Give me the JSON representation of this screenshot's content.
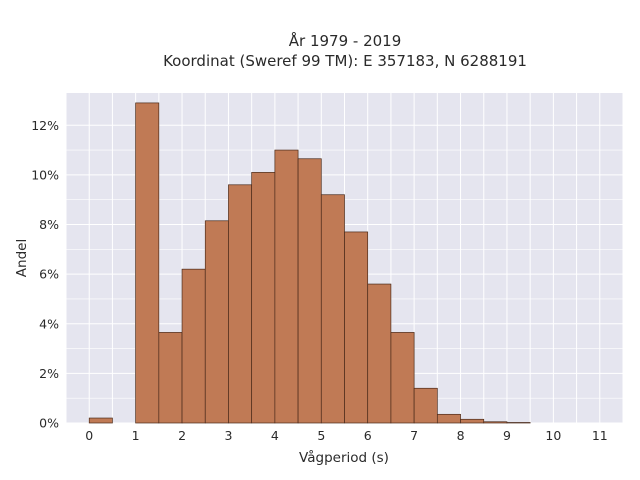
{
  "chart_data": {
    "type": "bar",
    "title": "År 1979 - 2019",
    "subtitle": "Koordinat (Sweref 99 TM): E 357183, N 6288191",
    "xlabel": "Vågperiod (s)",
    "ylabel": "Andel",
    "xlim": [
      -0.5,
      11.5
    ],
    "ylim": [
      0,
      13.3
    ],
    "x_ticks": [
      0,
      1,
      2,
      3,
      4,
      5,
      6,
      7,
      8,
      9,
      10,
      11
    ],
    "y_ticks": [
      0,
      2,
      4,
      6,
      8,
      10,
      12
    ],
    "y_tick_labels": [
      "0%",
      "2%",
      "4%",
      "6%",
      "8%",
      "10%",
      "12%"
    ],
    "bin_width": 0.5,
    "bins": [
      {
        "start": 0.0,
        "value": 0.2
      },
      {
        "start": 1.0,
        "value": 12.9
      },
      {
        "start": 1.5,
        "value": 3.65
      },
      {
        "start": 2.0,
        "value": 6.2
      },
      {
        "start": 2.5,
        "value": 8.15
      },
      {
        "start": 3.0,
        "value": 9.6
      },
      {
        "start": 3.5,
        "value": 10.1
      },
      {
        "start": 4.0,
        "value": 11.0
      },
      {
        "start": 4.5,
        "value": 10.65
      },
      {
        "start": 5.0,
        "value": 9.2
      },
      {
        "start": 5.5,
        "value": 7.7
      },
      {
        "start": 6.0,
        "value": 5.6
      },
      {
        "start": 6.5,
        "value": 3.65
      },
      {
        "start": 7.0,
        "value": 1.4
      },
      {
        "start": 7.5,
        "value": 0.35
      },
      {
        "start": 8.0,
        "value": 0.15
      },
      {
        "start": 8.5,
        "value": 0.05
      },
      {
        "start": 9.0,
        "value": 0.02
      }
    ],
    "grid": true,
    "colors": {
      "bar_fill": "#c07a55",
      "bar_stroke": "#4a2a1a",
      "plot_background": "#e5e5ef",
      "grid": "#ffffff"
    }
  }
}
